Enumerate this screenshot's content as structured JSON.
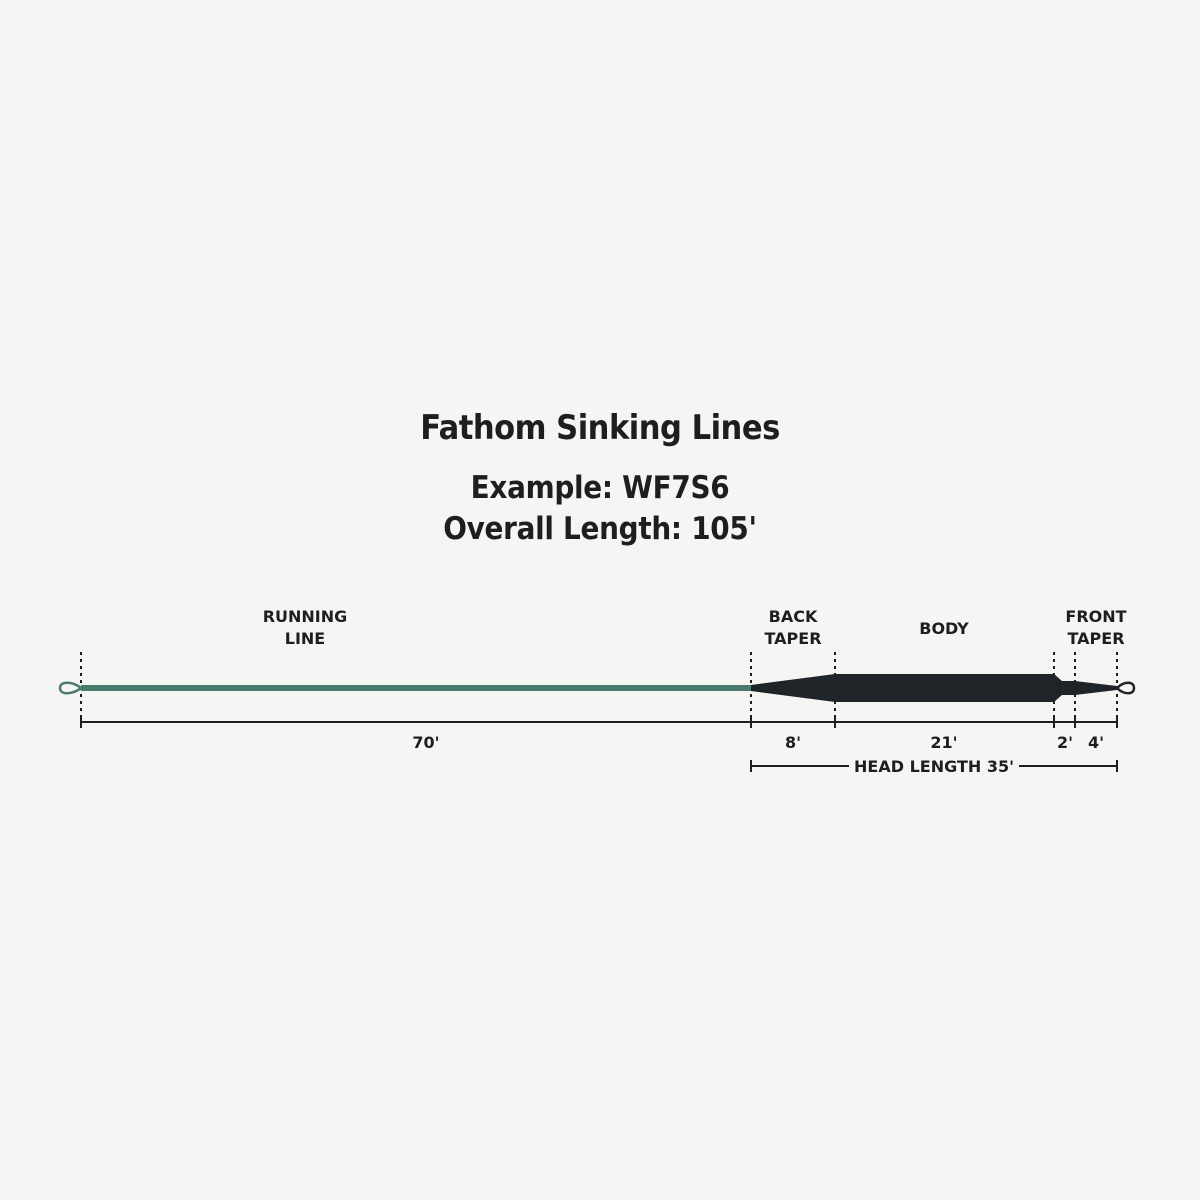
{
  "title": "Fathom Sinking Lines",
  "example": "Example: WF7S6",
  "overall_length": "Overall Length: 105'",
  "sections": {
    "running_line": {
      "label_1": "RUNNING",
      "label_2": "LINE",
      "length": "70'"
    },
    "back_taper": {
      "label_1": "BACK",
      "label_2": "TAPER",
      "length": "8'"
    },
    "body": {
      "label": "BODY",
      "length": "21'"
    },
    "transition": {
      "length": "2'"
    },
    "front_taper": {
      "label_1": "FRONT",
      "label_2": "TAPER",
      "length": "4'"
    }
  },
  "head_length": "HEAD LENGTH 35'",
  "colors": {
    "background": "#f5f5f3",
    "running_line": "#4a7a6e",
    "head": "#1e2428",
    "text": "#1e1e1e"
  }
}
